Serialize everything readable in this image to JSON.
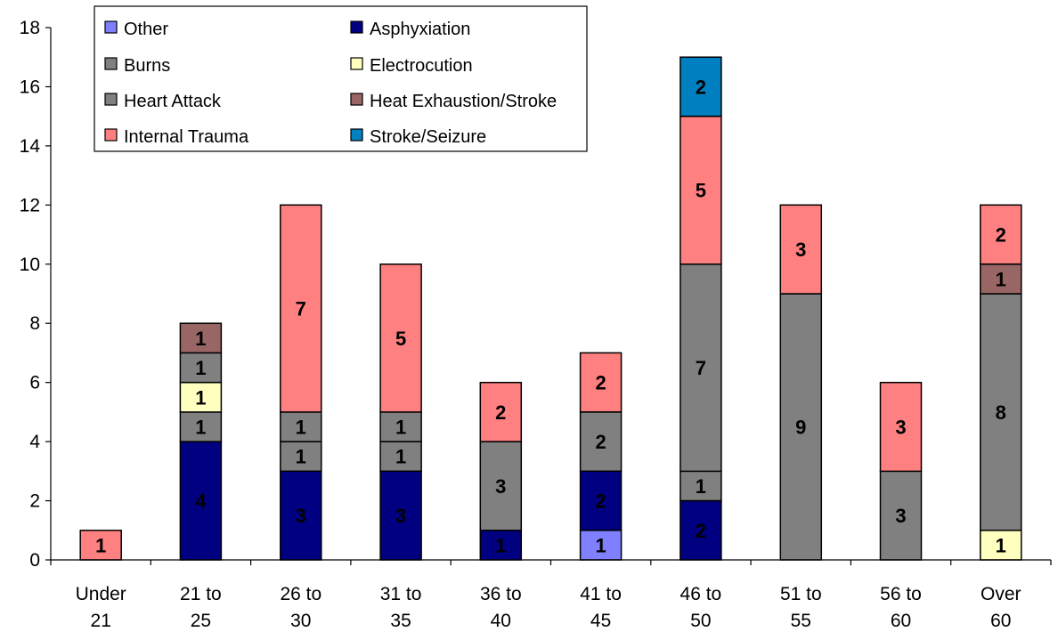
{
  "chart_data": {
    "type": "bar",
    "stacked": true,
    "title": "",
    "xlabel": "",
    "ylabel": "",
    "ylim": [
      0,
      18
    ],
    "yticks": [
      0,
      2,
      4,
      6,
      8,
      10,
      12,
      14,
      16,
      18
    ],
    "categories": [
      [
        "Under",
        "21"
      ],
      [
        "21 to",
        "25"
      ],
      [
        "26 to",
        "30"
      ],
      [
        "31 to",
        "35"
      ],
      [
        "36 to",
        "40"
      ],
      [
        "41 to",
        "45"
      ],
      [
        "46 to",
        "50"
      ],
      [
        "51 to",
        "55"
      ],
      [
        "56 to",
        "60"
      ],
      [
        "Over",
        "60"
      ]
    ],
    "series": [
      {
        "name": "Other",
        "color": "#8080ff",
        "values": [
          0,
          0,
          0,
          0,
          0,
          1,
          0,
          0,
          0,
          0
        ]
      },
      {
        "name": "Asphyxiation",
        "color": "#000080",
        "values": [
          0,
          4,
          3,
          3,
          1,
          2,
          2,
          0,
          0,
          0
        ]
      },
      {
        "name": "Electrocution",
        "color": "#ffffc0",
        "values": [
          0,
          0,
          0,
          0,
          0,
          0,
          0,
          0,
          0,
          1
        ]
      },
      {
        "name": "Burns",
        "color": "#808080",
        "values": [
          0,
          1,
          1,
          1,
          0,
          0,
          1,
          0,
          0,
          0
        ]
      },
      {
        "name": "Electrocution",
        "color": "#ffffc0",
        "values": [
          0,
          1,
          0,
          0,
          0,
          0,
          0,
          0,
          0,
          0
        ],
        "legend": false
      },
      {
        "name": "Heart Attack",
        "color": "#808080",
        "values": [
          0,
          1,
          1,
          1,
          3,
          2,
          7,
          9,
          3,
          8
        ]
      },
      {
        "name": "Heat Exhaustion/Stroke",
        "color": "#996666",
        "values": [
          0,
          1,
          0,
          0,
          0,
          0,
          0,
          0,
          0,
          1
        ]
      },
      {
        "name": "Internal Trauma",
        "color": "#ff8080",
        "values": [
          1,
          0,
          7,
          5,
          2,
          2,
          5,
          3,
          3,
          2
        ]
      },
      {
        "name": "Stroke/Seizure",
        "color": "#0080c0",
        "values": [
          0,
          0,
          0,
          0,
          0,
          0,
          2,
          0,
          0,
          0
        ]
      }
    ],
    "legend": {
      "placement": "top-left",
      "entries": [
        {
          "name": "Other",
          "color": "#8080ff"
        },
        {
          "name": "Asphyxiation",
          "color": "#000080"
        },
        {
          "name": "Burns",
          "color": "#808080"
        },
        {
          "name": "Electrocution",
          "color": "#ffffc0"
        },
        {
          "name": "Heart Attack",
          "color": "#808080"
        },
        {
          "name": "Heat Exhaustion/Stroke",
          "color": "#996666"
        },
        {
          "name": "Internal Trauma",
          "color": "#ff8080"
        },
        {
          "name": "Stroke/Seizure",
          "color": "#0080c0"
        }
      ]
    },
    "grid": false
  }
}
